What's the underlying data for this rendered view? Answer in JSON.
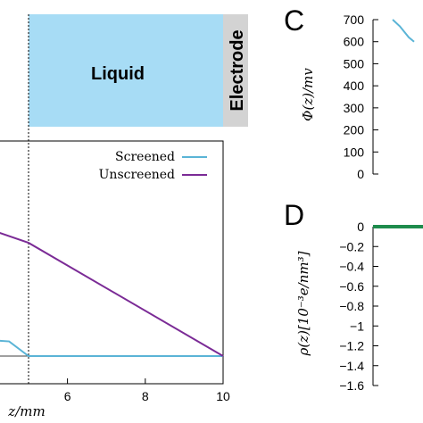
{
  "colors": {
    "screened": "#5ab4d6",
    "unscreened": "#7b2b96",
    "liquid_fill": "#a7dcf5",
    "electrode_fill": "#d3d3d3",
    "charge_line": "#1e8c4c"
  },
  "schematic": {
    "liquid_label": "Liquid",
    "electrode_label": "Electrode"
  },
  "panels": {
    "c_letter": "C",
    "d_letter": "D"
  },
  "chart_data": [
    {
      "type": "line",
      "panel": "main",
      "xlabel": "z/mm",
      "x_ticks": [
        "6",
        "8",
        "10"
      ],
      "xlim_visible": [
        3.75,
        10
      ],
      "legend_placement": "top-right",
      "interface_line_x": 5,
      "series": [
        {
          "name": "Screened",
          "x": [
            3.75,
            4.5,
            5.0,
            10.0
          ],
          "y": [
            0.08,
            0.07,
            0.0,
            0.0
          ]
        },
        {
          "name": "Unscreened",
          "x": [
            3.75,
            5.0,
            10.0
          ],
          "y": [
            0.62,
            0.54,
            0.0
          ]
        }
      ]
    },
    {
      "type": "line",
      "panel": "C",
      "ylabel": "Φ(z)/mv",
      "y_ticks": [
        "700",
        "600",
        "500",
        "400",
        "300",
        "200",
        "100",
        "0"
      ],
      "ylim": [
        0,
        700
      ],
      "series": [
        {
          "x": [
            0.0,
            0.4,
            0.9,
            1.2
          ],
          "y": [
            700,
            670,
            620,
            600
          ]
        }
      ]
    },
    {
      "type": "line",
      "panel": "D",
      "ylabel": "ρ(z)[10⁻³e/nm³]",
      "y_ticks": [
        "0",
        "−0.2",
        "−0.4",
        "−0.6",
        "−0.8",
        "−1",
        "−1.2",
        "−1.4",
        "−1.6"
      ],
      "ylim": [
        -1.6,
        0
      ],
      "series": [
        {
          "x": [
            0,
            1
          ],
          "y": [
            0,
            0
          ]
        }
      ]
    }
  ]
}
